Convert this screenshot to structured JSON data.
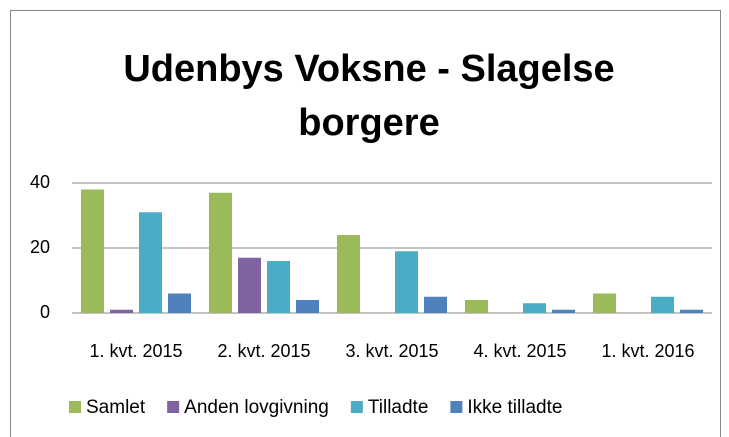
{
  "chart_data": {
    "type": "bar",
    "title": "Udenbys Voksne - Slagelse borgere",
    "categories": [
      "1. kvt. 2015",
      "2. kvt. 2015",
      "3. kvt. 2015",
      "4. kvt. 2015",
      "1. kvt. 2016"
    ],
    "series": [
      {
        "name": "Samlet",
        "color": "#9bbb59",
        "values": [
          38,
          37,
          24,
          4,
          6
        ]
      },
      {
        "name": "Anden lovgivning",
        "color": "#8064a2",
        "values": [
          1,
          17,
          0,
          0,
          0
        ]
      },
      {
        "name": "Tilladte",
        "color": "#4bacc6",
        "values": [
          31,
          16,
          19,
          3,
          5
        ]
      },
      {
        "name": "Ikke tilladte",
        "color": "#4f81bd",
        "values": [
          6,
          4,
          5,
          1,
          1
        ]
      }
    ],
    "ylim": [
      0,
      40
    ],
    "yticks": [
      0,
      20,
      40
    ],
    "grid": true,
    "legend": "bottom"
  }
}
